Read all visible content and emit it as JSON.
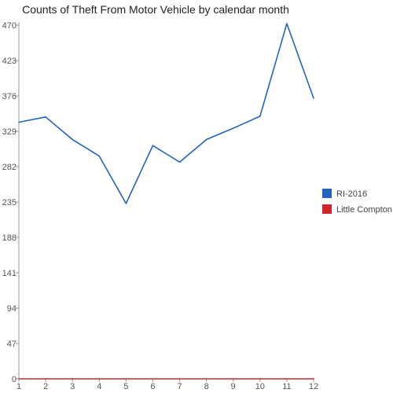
{
  "chart_data": {
    "type": "line",
    "title": "Counts of Theft From Motor Vehicle by calendar month",
    "xlabel": "",
    "ylabel": "",
    "x": [
      1,
      2,
      3,
      4,
      5,
      6,
      7,
      8,
      9,
      10,
      11,
      12
    ],
    "y_ticks": [
      0,
      47,
      94,
      141,
      188,
      235,
      282,
      329,
      376,
      423,
      470
    ],
    "ylim": [
      0,
      470
    ],
    "grid": false,
    "legend_position": "right",
    "series": [
      {
        "name": "RI-2016",
        "color": "#1f64c0",
        "values": [
          341,
          348,
          318,
          296,
          233,
          310,
          288,
          318,
          333,
          349,
          472,
          373
        ]
      },
      {
        "name": "Little Compton",
        "color": "#d0252a",
        "values": [
          0,
          0,
          0,
          0,
          0,
          0,
          0,
          0,
          0,
          0,
          0,
          0
        ]
      }
    ]
  }
}
